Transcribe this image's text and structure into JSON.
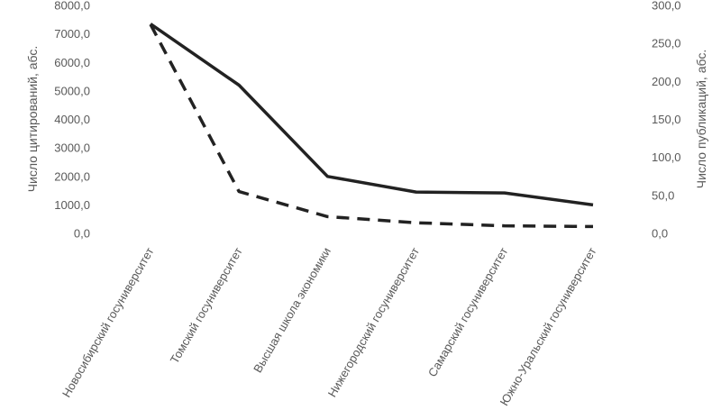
{
  "chart_data": {
    "type": "line",
    "categories": [
      "Новосибирский госуниверситет",
      "Томский госуниверситет",
      "Высшая школа экономики",
      "Нижегородский госуниверситет",
      "Самарский госуниверситет",
      "Южно-Уральский госуниверситет"
    ],
    "ylabel": "Число цитирований, абс.",
    "y2label": "Число публикаций, абс.",
    "ylim": [
      0,
      8000
    ],
    "y2lim": [
      0,
      300
    ],
    "yticks": [
      "0,0",
      "1000,0",
      "2000,0",
      "3000,0",
      "4000,0",
      "5000,0",
      "6000,0",
      "7000,0",
      "8000,0"
    ],
    "y2ticks": [
      "0,0",
      "50,0",
      "100,0",
      "150,0",
      "200,0",
      "250,0",
      "300,0"
    ],
    "grid": false,
    "legend": "none",
    "series": [
      {
        "axis": "left",
        "style": "solid",
        "color": "#222222",
        "values": [
          7350,
          5200,
          2000,
          1450,
          1420,
          1000
        ]
      },
      {
        "axis": "right",
        "style": "dashed",
        "color": "#222222",
        "values": [
          275,
          55,
          22,
          14,
          10,
          9
        ]
      }
    ]
  }
}
